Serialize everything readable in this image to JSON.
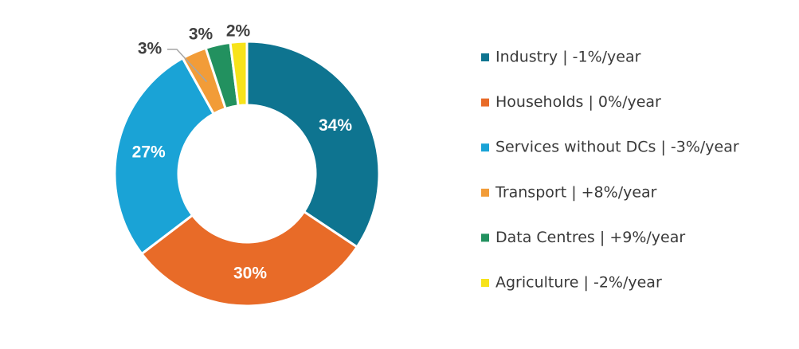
{
  "chart_data": {
    "type": "pie",
    "variant": "donut",
    "categories": [
      "Industry | -1%/year",
      "Households | 0%/year",
      "Services without DCs | -3%/year",
      "Transport | +8%/year",
      "Data Centres | +9%/year",
      "Agriculture | -2%/year"
    ],
    "values": [
      34,
      30,
      27,
      3,
      3,
      2
    ],
    "value_labels": [
      "34%",
      "30%",
      "27%",
      "3%",
      "3%",
      "2%"
    ],
    "colors": [
      "#0E7490",
      "#E86B28",
      "#1AA3D6",
      "#F29C38",
      "#22915F",
      "#F7E31A"
    ],
    "label_colors": [
      "#ffffff",
      "#ffffff",
      "#ffffff",
      "#404040",
      "#404040",
      "#404040"
    ],
    "legend_position": "right",
    "start_angle": "top, clockwise"
  }
}
